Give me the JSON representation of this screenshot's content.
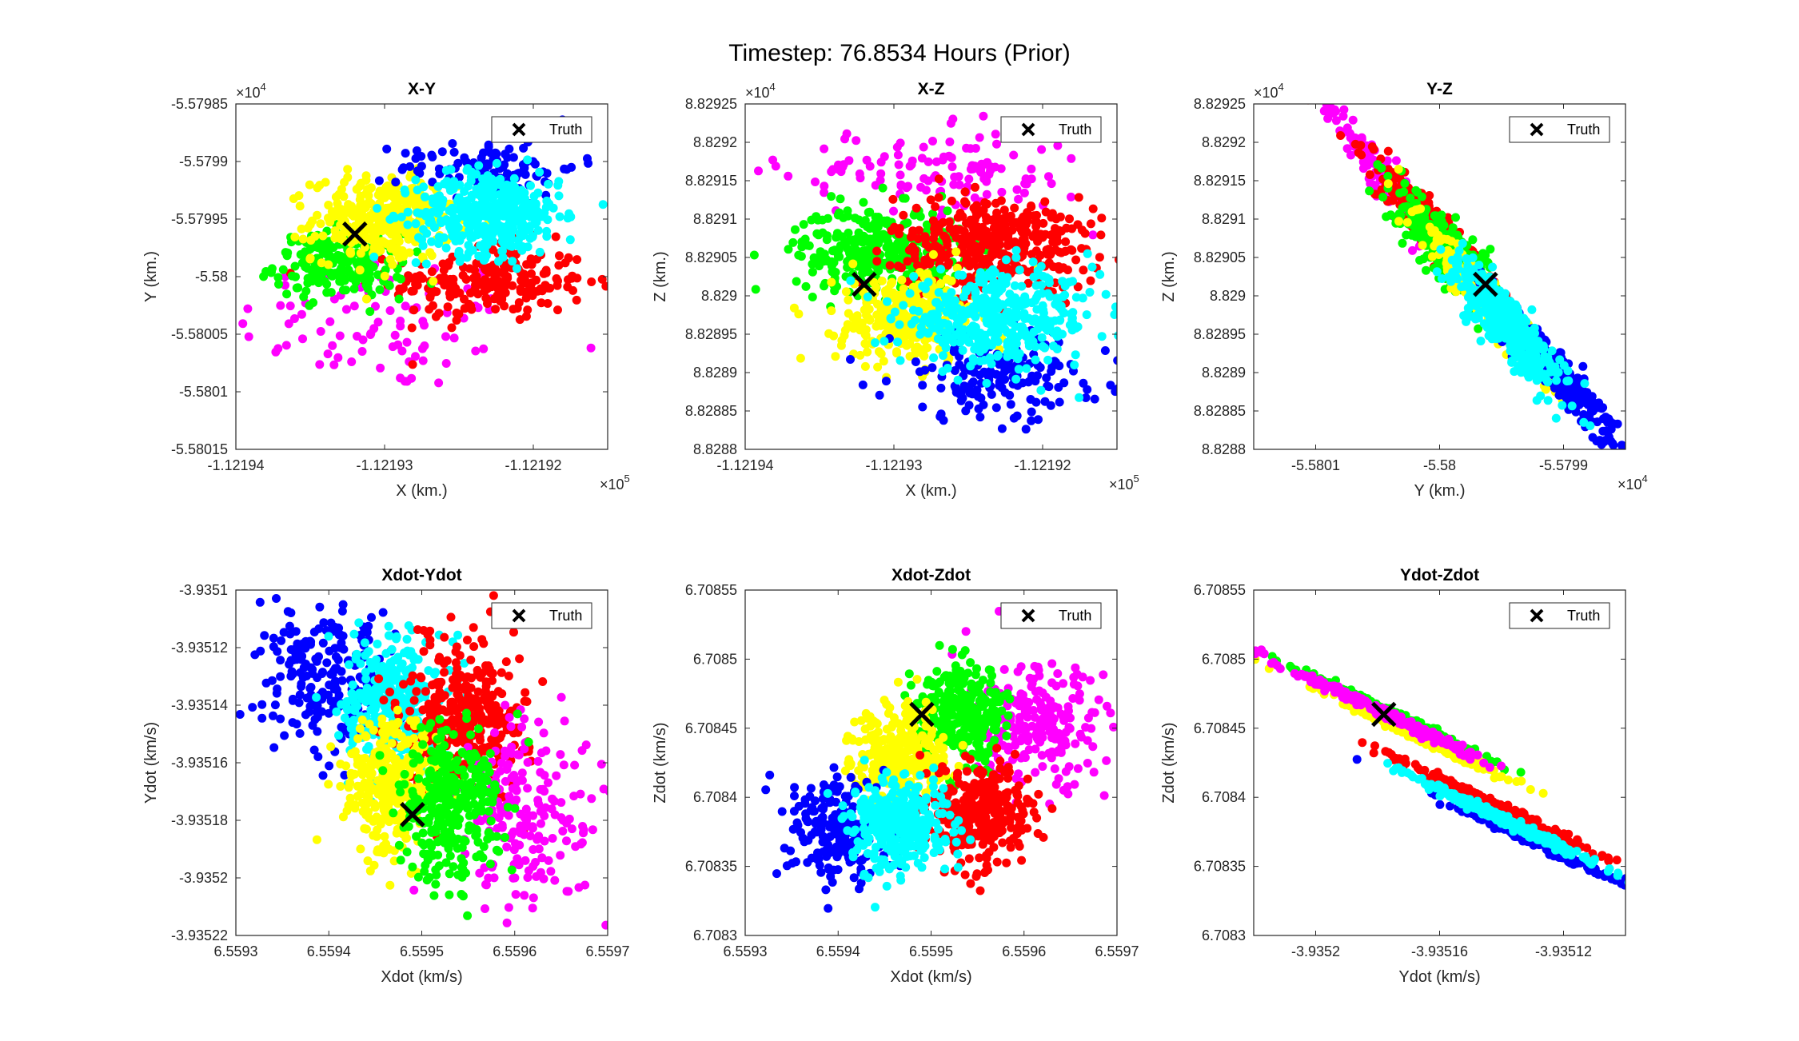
{
  "figure": {
    "title": "Timestep: 76.8534 Hours (Prior)",
    "colors": {
      "magenta": "#ff00ff",
      "red": "#ff0000",
      "green": "#00ff00",
      "yellow": "#ffff00",
      "cyan": "#00ffff",
      "blue": "#0000ff",
      "truth": "#000000"
    }
  },
  "chart_data": [
    {
      "type": "scatter",
      "title": "X-Y",
      "xlabel": "X (km.)",
      "ylabel": "Y (km.)",
      "xlim": [
        -112194,
        -112191.5
      ],
      "ylim": [
        -55801.5,
        -55798.5
      ],
      "xticks": [
        -112194,
        -112193,
        -112192
      ],
      "xtick_labels": [
        "-1.12194",
        "-1.12193",
        "-1.12192"
      ],
      "yticks": [
        -55801.5,
        -55801,
        -55800.5,
        -55800,
        -55799.5,
        -55799,
        -55798.5
      ],
      "ytick_labels": [
        "-5.58015",
        "-5.5801",
        "-5.58005",
        "-5.58",
        "-5.57995",
        "-5.5799",
        "-5.57985"
      ],
      "x_exponent": "10",
      "x_exponent_power": "5",
      "y_exponent": "10",
      "y_exponent_power": "4",
      "legend": {
        "label": "Truth",
        "location": "top-right"
      },
      "truth": [
        -112193.2,
        -55799.63
      ],
      "clusters": [
        {
          "color": "magenta",
          "center": [
            -112193.0,
            -55800.4
          ],
          "spread": [
            0.5,
            0.3
          ],
          "rot": 0,
          "n": 90
        },
        {
          "color": "red",
          "center": [
            -112192.3,
            -55800.05
          ],
          "spread": [
            0.33,
            0.17
          ],
          "rot": 0,
          "n": 220
        },
        {
          "color": "green",
          "center": [
            -112193.3,
            -55799.9
          ],
          "spread": [
            0.22,
            0.14
          ],
          "rot": 0,
          "n": 200
        },
        {
          "color": "yellow",
          "center": [
            -112193.0,
            -55799.5
          ],
          "spread": [
            0.24,
            0.18
          ],
          "rot": 0,
          "n": 330
        },
        {
          "color": "blue",
          "center": [
            -112192.3,
            -55799.05
          ],
          "spread": [
            0.3,
            0.12
          ],
          "rot": 0,
          "n": 110
        },
        {
          "color": "cyan",
          "center": [
            -112192.3,
            -55799.45
          ],
          "spread": [
            0.24,
            0.18
          ],
          "rot": 0,
          "n": 420
        }
      ]
    },
    {
      "type": "scatter",
      "title": "X-Z",
      "xlabel": "X (km.)",
      "ylabel": "Z (km.)",
      "xlim": [
        -112194,
        -112191.5
      ],
      "ylim": [
        88288,
        88292.5
      ],
      "xticks": [
        -112194,
        -112193,
        -112192
      ],
      "xtick_labels": [
        "-1.12194",
        "-1.12193",
        "-1.12192"
      ],
      "yticks": [
        88288,
        88288.5,
        88289,
        88289.5,
        88290,
        88290.5,
        88291,
        88291.5,
        88292,
        88292.5
      ],
      "ytick_labels": [
        "8.8288",
        "8.82885",
        "8.8289",
        "8.82895",
        "8.829",
        "8.82905",
        "8.8291",
        "8.82915",
        "8.8292",
        "8.82925"
      ],
      "x_exponent": "10",
      "x_exponent_power": "5",
      "y_exponent": "10",
      "y_exponent_power": "4",
      "legend": {
        "label": "Truth",
        "location": "top-right"
      },
      "truth": [
        -112193.2,
        88290.15
      ],
      "clusters": [
        {
          "color": "magenta",
          "center": [
            -112192.7,
            88291.6
          ],
          "spread": [
            0.5,
            0.28
          ],
          "rot": 0,
          "n": 130
        },
        {
          "color": "green",
          "center": [
            -112193.1,
            88290.6
          ],
          "spread": [
            0.28,
            0.28
          ],
          "rot": 0,
          "n": 330
        },
        {
          "color": "red",
          "center": [
            -112192.3,
            88290.7
          ],
          "spread": [
            0.35,
            0.3
          ],
          "rot": 0,
          "n": 380
        },
        {
          "color": "yellow",
          "center": [
            -112192.9,
            88289.7
          ],
          "spread": [
            0.24,
            0.3
          ],
          "rot": 0,
          "n": 300
        },
        {
          "color": "blue",
          "center": [
            -112192.3,
            88288.95
          ],
          "spread": [
            0.36,
            0.28
          ],
          "rot": 0,
          "n": 170
        },
        {
          "color": "cyan",
          "center": [
            -112192.3,
            88289.7
          ],
          "spread": [
            0.33,
            0.3
          ],
          "rot": 0,
          "n": 400
        }
      ]
    },
    {
      "type": "scatter",
      "title": "Y-Z",
      "xlabel": "Y (km.)",
      "ylabel": "Z (km.)",
      "xlim": [
        -55801.5,
        -55798.5
      ],
      "ylim": [
        88288,
        88292.5
      ],
      "xticks": [
        -55801,
        -55800,
        -55799
      ],
      "xtick_labels": [
        "-5.5801",
        "-5.58",
        "-5.5799"
      ],
      "yticks": [
        88288,
        88288.5,
        88289,
        88289.5,
        88290,
        88290.5,
        88291,
        88291.5,
        88292,
        88292.5
      ],
      "ytick_labels": [
        "8.8288",
        "8.82885",
        "8.8289",
        "8.82895",
        "8.829",
        "8.82905",
        "8.8291",
        "8.82915",
        "8.8292",
        "8.82925"
      ],
      "x_exponent": "10",
      "x_exponent_power": "4",
      "y_exponent": "10",
      "y_exponent_power": "4",
      "legend": {
        "label": "Truth",
        "location": "top-right"
      },
      "truth": [
        -55799.63,
        88290.15
      ],
      "clusters": [
        {
          "color": "magenta",
          "center": [
            -55800.4,
            88291.45
          ],
          "spread": [
            0.55,
            0.09
          ],
          "rot": -52,
          "n": 200
        },
        {
          "color": "red",
          "center": [
            -55800.05,
            88290.85
          ],
          "spread": [
            0.42,
            0.1
          ],
          "rot": -52,
          "n": 260
        },
        {
          "color": "green",
          "center": [
            -55799.95,
            88290.6
          ],
          "spread": [
            0.3,
            0.13
          ],
          "rot": -52,
          "n": 330
        },
        {
          "color": "yellow",
          "center": [
            -55799.55,
            88289.8
          ],
          "spread": [
            0.45,
            0.1
          ],
          "rot": -52,
          "n": 250
        },
        {
          "color": "blue",
          "center": [
            -55799.05,
            88289.0
          ],
          "spread": [
            0.45,
            0.1
          ],
          "rot": -52,
          "n": 250
        },
        {
          "color": "cyan",
          "center": [
            -55799.45,
            88289.6
          ],
          "spread": [
            0.33,
            0.13
          ],
          "rot": -52,
          "n": 400
        }
      ]
    },
    {
      "type": "scatter",
      "title": "Xdot-Ydot",
      "xlabel": "Xdot (km/s)",
      "ylabel": "Ydot (km/s)",
      "xlim": [
        6.5593,
        6.5597
      ],
      "ylim": [
        -3.93522,
        -3.9351
      ],
      "xticks": [
        6.5593,
        6.5594,
        6.5595,
        6.5596,
        6.5597
      ],
      "xtick_labels": [
        "6.5593",
        "6.5594",
        "6.5595",
        "6.5596",
        "6.5597"
      ],
      "yticks": [
        -3.93522,
        -3.9352,
        -3.93518,
        -3.93516,
        -3.93514,
        -3.93512,
        -3.9351
      ],
      "ytick_labels": [
        "-3.93522",
        "-3.9352",
        "-3.93518",
        "-3.93516",
        "-3.93514",
        "-3.93512",
        "-3.9351"
      ],
      "legend": {
        "label": "Truth",
        "location": "top-right"
      },
      "truth": [
        6.55949,
        -3.935178
      ],
      "clusters": [
        {
          "color": "blue",
          "center": [
            6.5594,
            -3.935132
          ],
          "spread": [
            3.6e-05,
            1.25e-05
          ],
          "rot": 0,
          "n": 220
        },
        {
          "color": "cyan",
          "center": [
            6.559468,
            -3.935138
          ],
          "spread": [
            2.5e-05,
            1.15e-05
          ],
          "rot": 0,
          "n": 320
        },
        {
          "color": "red",
          "center": [
            6.559547,
            -3.935143
          ],
          "spread": [
            3.3e-05,
            1.3e-05
          ],
          "rot": 0,
          "n": 340
        },
        {
          "color": "magenta",
          "center": [
            6.559615,
            -3.935177
          ],
          "spread": [
            4e-05,
            1.7e-05
          ],
          "rot": 0,
          "n": 200
        },
        {
          "color": "yellow",
          "center": [
            6.559468,
            -3.935168
          ],
          "spread": [
            2.5e-05,
            1.2e-05
          ],
          "rot": 0,
          "n": 300
        },
        {
          "color": "green",
          "center": [
            6.559528,
            -3.935175
          ],
          "spread": [
            2.7e-05,
            1.3e-05
          ],
          "rot": 0,
          "n": 320
        }
      ]
    },
    {
      "type": "scatter",
      "title": "Xdot-Zdot",
      "xlabel": "Xdot (km/s)",
      "ylabel": "Zdot (km/s)",
      "xlim": [
        6.5593,
        6.5597
      ],
      "ylim": [
        6.7083,
        6.70855
      ],
      "xticks": [
        6.5593,
        6.5594,
        6.5595,
        6.5596,
        6.5597
      ],
      "xtick_labels": [
        "6.5593",
        "6.5594",
        "6.5595",
        "6.5596",
        "6.5597"
      ],
      "yticks": [
        6.7083,
        6.70835,
        6.7084,
        6.70845,
        6.7085,
        6.70855
      ],
      "ytick_labels": [
        "6.7083",
        "6.70835",
        "6.7084",
        "6.70845",
        "6.7085",
        "6.70855"
      ],
      "legend": {
        "label": "Truth",
        "location": "top-right"
      },
      "truth": [
        6.55949,
        6.70846
      ],
      "clusters": [
        {
          "color": "magenta",
          "center": [
            6.559615,
            6.70845
          ],
          "spread": [
            3.6e-05,
            2.2e-05
          ],
          "rot": 0,
          "n": 230
        },
        {
          "color": "green",
          "center": [
            6.559534,
            6.70846
          ],
          "spread": [
            2.5e-05,
            1.7e-05
          ],
          "rot": 0,
          "n": 320
        },
        {
          "color": "yellow",
          "center": [
            6.559465,
            6.70843
          ],
          "spread": [
            2.5e-05,
            1.7e-05
          ],
          "rot": 0,
          "n": 300
        },
        {
          "color": "red",
          "center": [
            6.559553,
            6.708388
          ],
          "spread": [
            2.7e-05,
            1.8e-05
          ],
          "rot": 0,
          "n": 330
        },
        {
          "color": "blue",
          "center": [
            6.5594,
            6.708378
          ],
          "spread": [
            2.6e-05,
            1.9e-05
          ],
          "rot": 0,
          "n": 210
        },
        {
          "color": "cyan",
          "center": [
            6.559467,
            6.70838
          ],
          "spread": [
            2.5e-05,
            1.6e-05
          ],
          "rot": 0,
          "n": 350
        }
      ]
    },
    {
      "type": "scatter",
      "title": "Ydot-Zdot",
      "xlabel": "Ydot (km/s)",
      "ylabel": "Zdot (km/s)",
      "xlim": [
        -3.93522,
        -3.9351
      ],
      "ylim": [
        6.7083,
        6.70855
      ],
      "xticks": [
        -3.9352,
        -3.93516,
        -3.93512
      ],
      "xtick_labels": [
        "-3.9352",
        "-3.93516",
        "-3.93512"
      ],
      "yticks": [
        6.7083,
        6.70835,
        6.7084,
        6.70845,
        6.7085,
        6.70855
      ],
      "ytick_labels": [
        "6.7083",
        "6.70835",
        "6.7084",
        "6.70845",
        "6.7085",
        "6.70855"
      ],
      "legend": {
        "label": "Truth",
        "location": "top-right"
      },
      "truth": [
        -3.935178,
        6.70846
      ],
      "clusters": [
        {
          "color": "green",
          "center": [
            -3.935175,
            6.70846
          ],
          "spread": [
            1.65e-05,
            1.5e-06
          ],
          "rot": -27,
          "n": 260
        },
        {
          "color": "yellow",
          "center": [
            -3.935168,
            6.708445
          ],
          "spread": [
            1.65e-05,
            1.5e-06
          ],
          "rot": -27,
          "n": 260
        },
        {
          "color": "red",
          "center": [
            -3.935143,
            6.708395
          ],
          "spread": [
            1.65e-05,
            1.5e-06
          ],
          "rot": -27,
          "n": 260
        },
        {
          "color": "magenta",
          "center": [
            -3.935177,
            6.70846
          ],
          "spread": [
            1.8e-05,
            1.6e-06
          ],
          "rot": -27,
          "n": 240
        },
        {
          "color": "blue",
          "center": [
            -3.935132,
            6.70837
          ],
          "spread": [
            1.65e-05,
            1.5e-06
          ],
          "rot": -27,
          "n": 210
        },
        {
          "color": "cyan",
          "center": [
            -3.935138,
            6.708382
          ],
          "spread": [
            1.65e-05,
            1.5e-06
          ],
          "rot": -27,
          "n": 320
        }
      ]
    }
  ]
}
